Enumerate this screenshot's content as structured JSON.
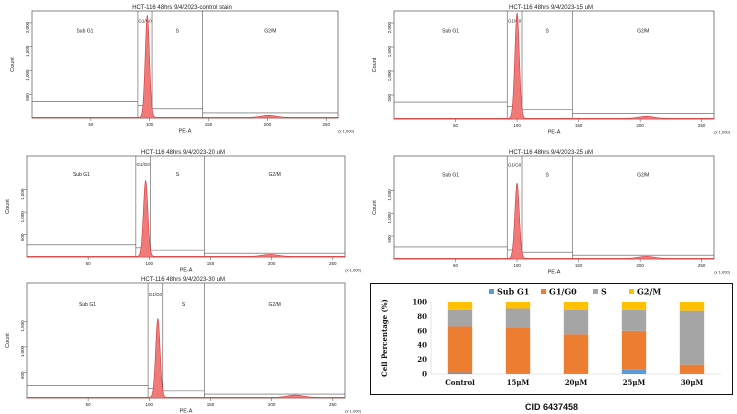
{
  "histograms": [
    {
      "title": "HCT-116 48hrs 9/4/2023-control stain",
      "x_label": "PE-A",
      "y_label": "Count",
      "x_ticks": [
        "50",
        "100",
        "150",
        "200",
        "250"
      ],
      "y_ticks": [
        "500",
        "1,000",
        "1,500",
        "2,000"
      ],
      "x_multiplier": "(x 1,000)",
      "gates": [
        "Sub G1",
        "G1/G0",
        "S",
        "G2/M"
      ],
      "peak_position": 98,
      "peak_count": 2150
    },
    {
      "title": "HCT-116 48hrs 9/4/2023-15 uM",
      "x_label": "PE-A",
      "y_label": "Count",
      "x_ticks": [
        "50",
        "100",
        "150",
        "200",
        "250"
      ],
      "y_ticks": [
        "500",
        "1,000",
        "1,500",
        "2,000"
      ],
      "x_multiplier": "(x 1,000)",
      "gates": [
        "Sub G1",
        "G1/G0",
        "S",
        "G2/M"
      ],
      "peak_position": 100,
      "peak_count": 2200
    },
    {
      "title": "HCT-116 48hrs 9/4/2023-20 uM",
      "x_label": "PE-A",
      "y_label": "Count",
      "x_ticks": [
        "50",
        "100",
        "150",
        "200",
        "250"
      ],
      "y_ticks": [
        "500",
        "1,000",
        "1,500"
      ],
      "x_multiplier": "(x 1,000)",
      "gates": [
        "Sub G1",
        "G1/G0",
        "S",
        "G2/M"
      ],
      "peak_position": 97,
      "peak_count": 1700
    },
    {
      "title": "HCT-116 48hrs 9/4/2023-25 uM",
      "x_label": "PE-A",
      "y_label": "Count",
      "x_ticks": [
        "50",
        "100",
        "150",
        "200",
        "250"
      ],
      "y_ticks": [
        "500",
        "1,000",
        "1,500"
      ],
      "x_multiplier": "(x 1,000)",
      "gates": [
        "Sub G1",
        "G1/G0",
        "S",
        "G2/M"
      ],
      "peak_position": 100,
      "peak_count": 1650
    },
    {
      "title": "HCT-116 48hrs 9/4/2023-30 uM",
      "x_label": "PE-A",
      "y_label": "Count",
      "x_ticks": [
        "50",
        "100",
        "150",
        "200",
        "250"
      ],
      "y_ticks": [
        "500",
        "1,000",
        "1,500"
      ],
      "x_multiplier": "(x 1,000)",
      "gates": [
        "Sub G1",
        "G1/G0",
        "S",
        "G2/M"
      ],
      "peak_position": 107,
      "peak_count": 1550
    }
  ],
  "chart_data": {
    "type": "bar",
    "stacked": true,
    "categories": [
      "Control",
      "15μM",
      "20μM",
      "25μM",
      "30μM"
    ],
    "series": [
      {
        "name": "Sub G1",
        "color": "#5b9bd5",
        "values": [
          2,
          1,
          1,
          6,
          1
        ]
      },
      {
        "name": "G1/G0",
        "color": "#ed7d31",
        "values": [
          64,
          64,
          54,
          54,
          12
        ]
      },
      {
        "name": "S",
        "color": "#a5a5a5",
        "values": [
          23,
          26,
          34,
          29,
          75
        ]
      },
      {
        "name": "G2/M",
        "color": "#ffc000",
        "values": [
          11,
          9,
          11,
          11,
          12
        ]
      }
    ],
    "ylabel": "Cell Percentage (%)",
    "ylim": [
      0,
      100
    ],
    "yticks": [
      "0",
      "20",
      "40",
      "60",
      "80",
      "100"
    ],
    "legend_position": "top",
    "footer": "CID 6437458"
  }
}
